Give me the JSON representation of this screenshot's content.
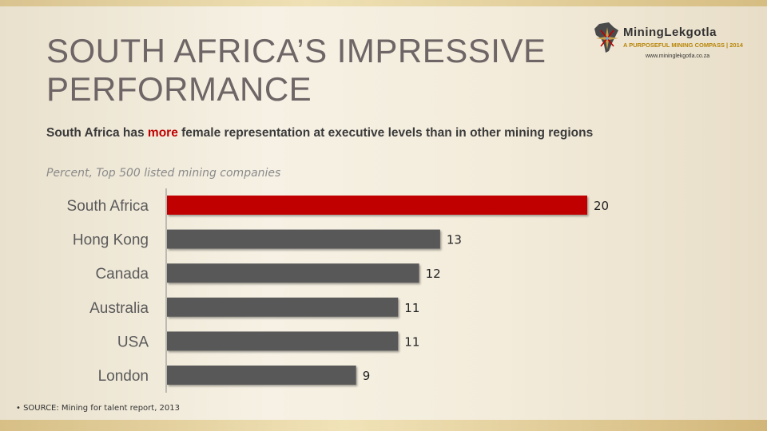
{
  "slide": {
    "title_line1": "SOUTH AFRICA’S IMPRESSIVE",
    "title_line2": "PERFORMANCE",
    "subtitle_pre": "South Africa has ",
    "subtitle_highlight": "more",
    "subtitle_post": " female representation at executive levels than in other mining regions",
    "units_note": "Percent, Top 500 listed mining companies",
    "source": "• SOURCE:  Mining for talent report, 2013"
  },
  "logo": {
    "name": "MiningLekgotla",
    "tagline": "A PURPOSEFUL MINING COMPASS | 2014",
    "url": "www.mininglekgotla.co.za"
  },
  "colors": {
    "highlight_bar": "#c00000",
    "default_bar": "#595959",
    "highlight_text": "#c00000"
  },
  "chart_data": {
    "type": "bar",
    "orientation": "horizontal",
    "categories": [
      "South Africa",
      "Hong Kong",
      "Canada",
      "Australia",
      "USA",
      "London"
    ],
    "values": [
      20,
      13,
      12,
      11,
      11,
      9
    ],
    "highlight": "South Africa",
    "title": "",
    "xlabel": "",
    "ylabel": "",
    "xlim": [
      0,
      20
    ],
    "grid": false,
    "legend": "none"
  }
}
